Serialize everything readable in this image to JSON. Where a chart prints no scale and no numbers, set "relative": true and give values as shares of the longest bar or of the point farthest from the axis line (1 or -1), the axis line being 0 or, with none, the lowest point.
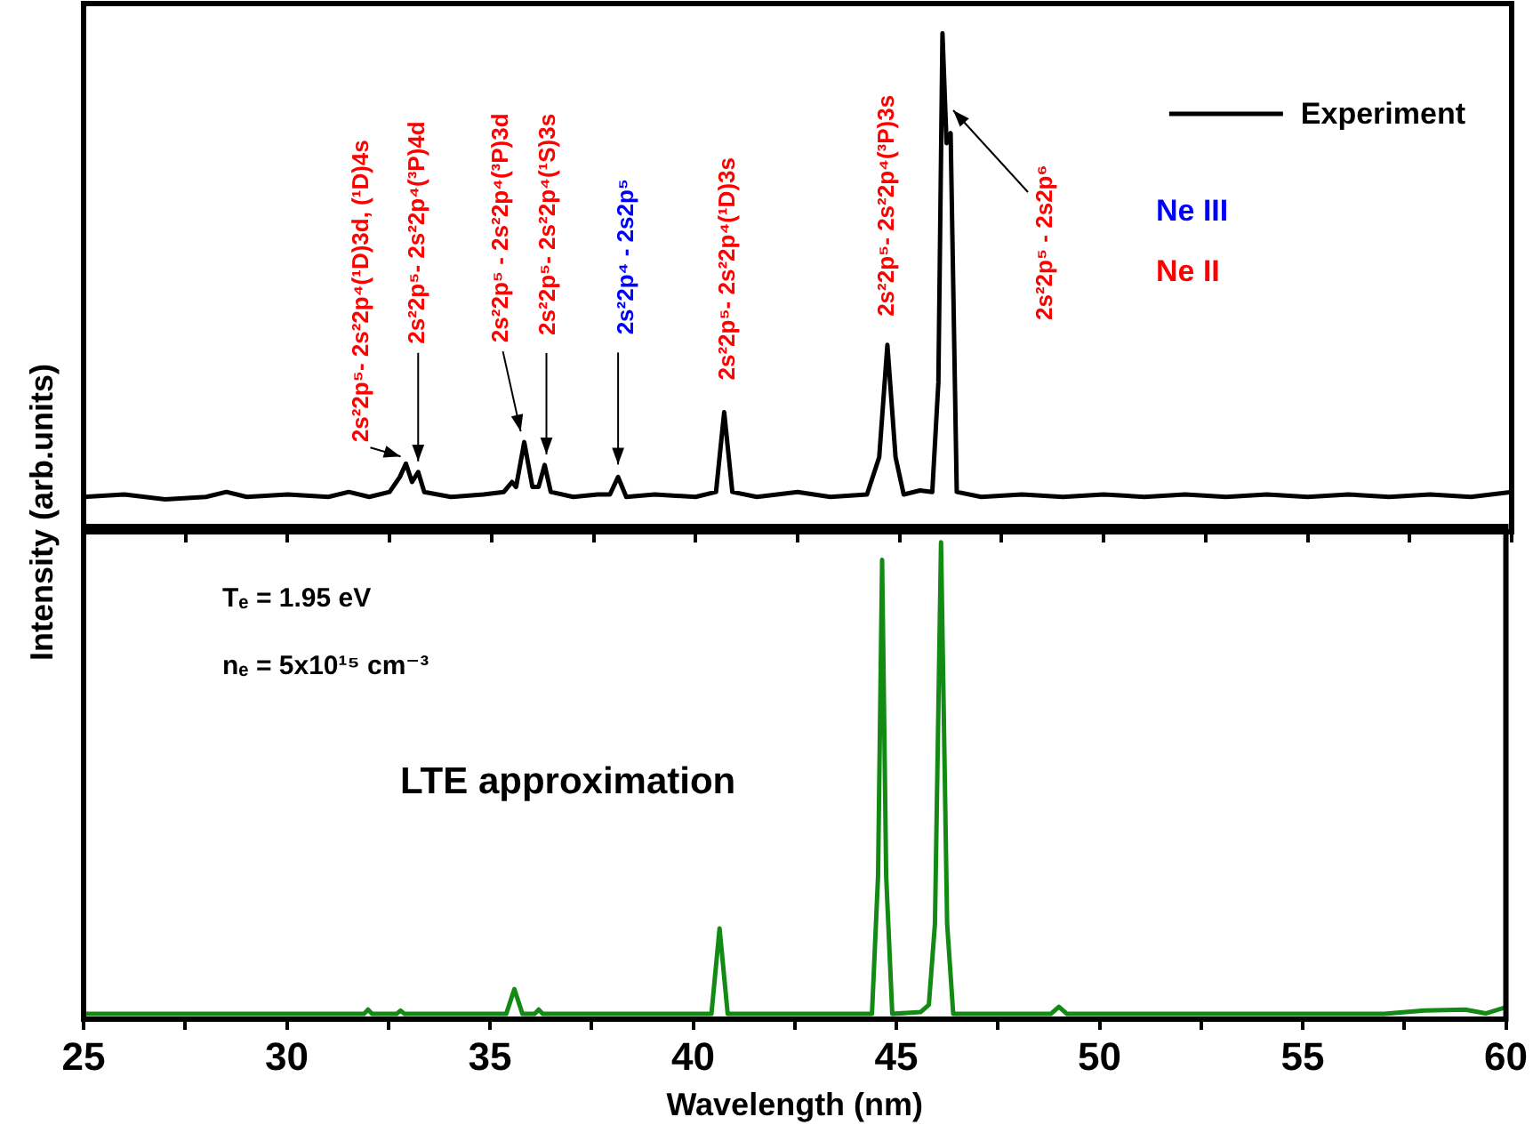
{
  "chart_data": [
    {
      "type": "line",
      "ylabel": "Intensity (arb.units)",
      "relative": true,
      "xlim": [
        25,
        60
      ],
      "xticks": [
        25,
        {
          "value": 27.5,
          "label": null
        },
        30,
        {
          "value": 32.5,
          "label": null
        },
        35,
        {
          "value": 37.5,
          "label": null
        },
        40,
        {
          "value": 42.5,
          "label": null
        },
        45,
        {
          "value": 47.5,
          "label": null
        },
        50,
        {
          "value": 52.5,
          "label": null
        },
        55,
        {
          "value": 57.5,
          "label": null
        },
        60
      ],
      "tick_labels": false,
      "legend": "top right",
      "marker": "none",
      "line_style": "solid",
      "series": [
        {
          "name": "Experiment",
          "color": "#000000",
          "x": [
            25,
            26,
            27,
            28,
            28.5,
            29,
            30,
            31,
            31.5,
            32,
            32.5,
            32.75,
            32.9,
            33.05,
            33.2,
            33.35,
            34,
            34.8,
            35.3,
            35.5,
            35.6,
            35.8,
            36.0,
            36.15,
            36.3,
            36.45,
            37,
            37.6,
            37.9,
            38.1,
            38.3,
            39,
            40,
            40.5,
            40.7,
            40.9,
            41.5,
            42.5,
            43.3,
            44.2,
            44.5,
            44.7,
            44.9,
            45.1,
            45.5,
            45.8,
            45.95,
            46.05,
            46.15,
            46.25,
            46.4,
            47,
            48,
            49,
            50,
            51,
            52,
            53,
            54,
            55,
            56,
            57,
            58,
            59,
            60
          ],
          "values": [
            0.07,
            0.075,
            0.065,
            0.07,
            0.08,
            0.07,
            0.075,
            0.07,
            0.08,
            0.07,
            0.08,
            0.11,
            0.137,
            0.1,
            0.12,
            0.08,
            0.07,
            0.075,
            0.08,
            0.1,
            0.09,
            0.18,
            0.09,
            0.09,
            0.134,
            0.08,
            0.07,
            0.075,
            0.075,
            0.11,
            0.07,
            0.075,
            0.07,
            0.08,
            0.24,
            0.08,
            0.07,
            0.08,
            0.07,
            0.075,
            0.15,
            0.375,
            0.15,
            0.075,
            0.083,
            0.08,
            0.3,
            1.0,
            0.78,
            0.8,
            0.08,
            0.07,
            0.075,
            0.07,
            0.075,
            0.07,
            0.075,
            0.07,
            0.075,
            0.07,
            0.075,
            0.07,
            0.075,
            0.07,
            0.08
          ]
        }
      ],
      "annotations": [
        {
          "text": "2s²2p⁵- 2s²2p⁴(¹D)3d, (¹D)4s",
          "x": 32.9,
          "y": 0.137
        },
        {
          "text": "2s²2p⁵- 2s²2p⁴(³P)4d",
          "x": 33.2,
          "y": 0.12
        },
        {
          "text": "2s²2p⁵ - 2s²2p⁴(³P)3d",
          "x": 35.8,
          "y": 0.18
        },
        {
          "text": "2s²2p⁵- 2s²2p⁴(¹S)3s",
          "x": 36.3,
          "y": 0.134
        },
        {
          "text": "2s²2p⁴ - 2s2p⁵",
          "x": 38.1,
          "y": 0.11
        },
        {
          "text": "2s²2p⁵- 2s²2p⁴(¹D)3s",
          "x": 40.7,
          "y": 0.24
        },
        {
          "text": "2s²2p⁵- 2s²2p⁴(³P)3s",
          "x": 44.7,
          "y": 0.375
        },
        "2s²2p⁵ - 2s2p⁶",
        "Ne III",
        "Ne II"
      ]
    },
    {
      "type": "line",
      "xlabel": "Wavelength (nm)",
      "relative": true,
      "xlim": [
        25,
        60
      ],
      "xticks": [
        25,
        {
          "value": 27.5,
          "label": null
        },
        30,
        {
          "value": 32.5,
          "label": null
        },
        35,
        {
          "value": 37.5,
          "label": null
        },
        40,
        {
          "value": 42.5,
          "label": null
        },
        45,
        {
          "value": 47.5,
          "label": null
        },
        50,
        {
          "value": 52.5,
          "label": null
        },
        55,
        {
          "value": 57.5,
          "label": null
        },
        60
      ],
      "tick_labels": "x",
      "marker": "none",
      "line_style": "solid",
      "series": [
        {
          "color": "#138a13",
          "x": [
            25,
            31,
            31.9,
            32.0,
            32.1,
            32.7,
            32.8,
            32.9,
            35.4,
            35.6,
            35.8,
            36.1,
            36.2,
            36.3,
            40.45,
            40.65,
            40.85,
            44.4,
            44.55,
            44.65,
            44.75,
            44.9,
            45.6,
            45.8,
            45.95,
            46.1,
            46.25,
            46.4,
            48.8,
            49.0,
            49.2,
            57,
            58,
            59,
            59.5,
            60
          ],
          "values": [
            0.011,
            0.011,
            0.011,
            0.02,
            0.011,
            0.011,
            0.018,
            0.011,
            0.011,
            0.063,
            0.011,
            0.011,
            0.02,
            0.011,
            0.011,
            0.19,
            0.011,
            0.011,
            0.3,
            0.963,
            0.3,
            0.011,
            0.015,
            0.03,
            0.2,
            1.0,
            0.2,
            0.011,
            0.011,
            0.026,
            0.011,
            0.011,
            0.018,
            0.02,
            0.012,
            0.025
          ]
        }
      ],
      "annotations": [
        "Tₑ = 1.95 eV",
        "nₑ = 5x10¹⁵ cm⁻³",
        "LTE approximation"
      ]
    }
  ]
}
